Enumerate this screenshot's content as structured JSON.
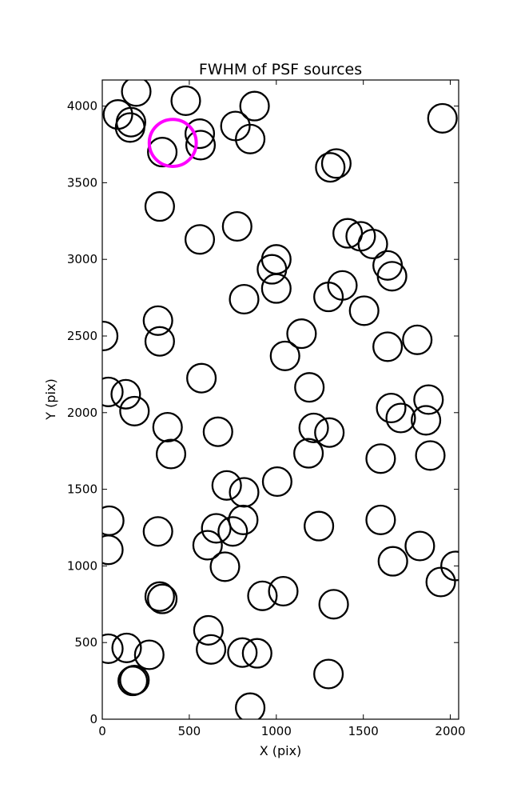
{
  "chart_data": {
    "type": "scatter",
    "title": "FWHM of PSF sources",
    "xlabel": "X (pix)",
    "ylabel": "Y (pix)",
    "xlim": [
      0,
      2048
    ],
    "ylim": [
      0,
      4170
    ],
    "xticks": [
      0,
      500,
      1000,
      1500,
      2000
    ],
    "yticks": [
      0,
      500,
      1000,
      1500,
      2000,
      2500,
      3000,
      3500,
      4000
    ],
    "grid": false,
    "marker": "open-circle",
    "marker_color": "#000000",
    "highlight_color": "#ff00ff",
    "highlight": {
      "x": 405,
      "y": 3760,
      "r": 135
    },
    "points": [
      [
        90,
        3945
      ],
      [
        195,
        4095
      ],
      [
        160,
        3860
      ],
      [
        165,
        3895
      ],
      [
        480,
        4035
      ],
      [
        560,
        3820
      ],
      [
        565,
        3745
      ],
      [
        345,
        3700
      ],
      [
        765,
        3870
      ],
      [
        875,
        4000
      ],
      [
        850,
        3785
      ],
      [
        1310,
        3600
      ],
      [
        1345,
        3625
      ],
      [
        1955,
        3920
      ],
      [
        330,
        3345
      ],
      [
        560,
        3130
      ],
      [
        775,
        3215
      ],
      [
        1410,
        3170
      ],
      [
        1485,
        3150
      ],
      [
        1555,
        3100
      ],
      [
        1640,
        2960
      ],
      [
        1665,
        2890
      ],
      [
        1000,
        3000
      ],
      [
        975,
        2935
      ],
      [
        1000,
        2810
      ],
      [
        1380,
        2830
      ],
      [
        1300,
        2755
      ],
      [
        1505,
        2665
      ],
      [
        815,
        2740
      ],
      [
        1145,
        2515
      ],
      [
        1050,
        2370
      ],
      [
        1640,
        2430
      ],
      [
        1810,
        2475
      ],
      [
        5,
        2500
      ],
      [
        320,
        2600
      ],
      [
        330,
        2465
      ],
      [
        35,
        2135
      ],
      [
        135,
        2120
      ],
      [
        185,
        2010
      ],
      [
        570,
        2225
      ],
      [
        1190,
        2165
      ],
      [
        1660,
        2030
      ],
      [
        1715,
        1965
      ],
      [
        1875,
        2085
      ],
      [
        1860,
        1950
      ],
      [
        375,
        1905
      ],
      [
        395,
        1730
      ],
      [
        665,
        1875
      ],
      [
        1215,
        1900
      ],
      [
        1305,
        1870
      ],
      [
        1185,
        1735
      ],
      [
        1600,
        1700
      ],
      [
        1885,
        1720
      ],
      [
        715,
        1525
      ],
      [
        815,
        1480
      ],
      [
        1005,
        1550
      ],
      [
        40,
        1295
      ],
      [
        35,
        1105
      ],
      [
        320,
        1225
      ],
      [
        605,
        1135
      ],
      [
        655,
        1245
      ],
      [
        750,
        1225
      ],
      [
        810,
        1300
      ],
      [
        705,
        995
      ],
      [
        1245,
        1260
      ],
      [
        1600,
        1300
      ],
      [
        1670,
        1030
      ],
      [
        1825,
        1130
      ],
      [
        2030,
        1000
      ],
      [
        1945,
        895
      ],
      [
        330,
        800
      ],
      [
        345,
        785
      ],
      [
        920,
        805
      ],
      [
        1040,
        835
      ],
      [
        1330,
        750
      ],
      [
        610,
        580
      ],
      [
        625,
        455
      ],
      [
        805,
        435
      ],
      [
        890,
        430
      ],
      [
        35,
        460
      ],
      [
        140,
        465
      ],
      [
        270,
        420
      ],
      [
        175,
        250
      ],
      [
        185,
        255
      ],
      [
        1300,
        295
      ],
      [
        850,
        75
      ]
    ],
    "circle_radius": 82
  }
}
